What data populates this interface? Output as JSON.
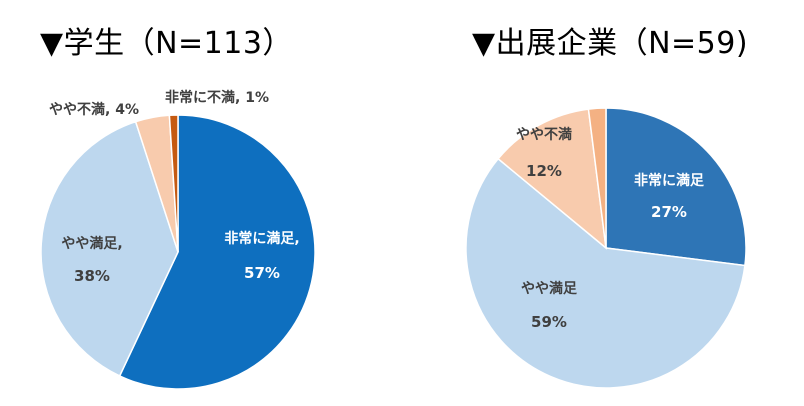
{
  "chart_data": [
    {
      "type": "pie",
      "title": "▼学生（N=113）",
      "series": [
        {
          "slices": [
            {
              "label": "非常に満足",
              "value": 57,
              "value_label": "57%",
              "color": "#0e6fbf",
              "label_color": "#ffffff",
              "label_style": "two-line-comma"
            },
            {
              "label": "やや満足",
              "value": 38,
              "value_label": "38%",
              "color": "#bdd7ee",
              "label_color": "#404040",
              "label_style": "two-line-comma"
            },
            {
              "label": "やや不満",
              "value": 4,
              "value_label": "4%",
              "color": "#f8cbad",
              "label_color": "#404040",
              "label_style": "inline"
            },
            {
              "label": "非常に不満",
              "value": 1,
              "value_label": "1%",
              "color": "#c55a11",
              "label_color": "#404040",
              "label_style": "inline"
            }
          ]
        }
      ]
    },
    {
      "type": "pie",
      "title": "▼出展企業（N=59)",
      "series": [
        {
          "slices": [
            {
              "label": "非常に満足",
              "value": 27,
              "value_label": "27%",
              "color": "#2e75b6",
              "label_color": "#ffffff",
              "label_style": "two-line"
            },
            {
              "label": "やや満足",
              "value": 59,
              "value_label": "59%",
              "color": "#bdd7ee",
              "label_color": "#404040",
              "label_style": "two-line"
            },
            {
              "label": "やや不満",
              "value": 12,
              "value_label": "12%",
              "color": "#f8cbad",
              "label_color": "#404040",
              "label_style": "two-line"
            },
            {
              "label": "",
              "value": 2,
              "value_label": "",
              "color": "#f4b183",
              "label_color": "#404040",
              "label_style": "none"
            }
          ]
        }
      ]
    }
  ]
}
